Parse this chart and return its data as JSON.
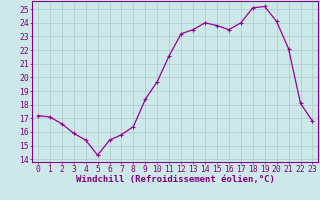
{
  "x": [
    0,
    1,
    2,
    3,
    4,
    5,
    6,
    7,
    8,
    9,
    10,
    11,
    12,
    13,
    14,
    15,
    16,
    17,
    18,
    19,
    20,
    21,
    22,
    23
  ],
  "y": [
    17.2,
    17.1,
    16.6,
    15.9,
    15.4,
    14.3,
    15.4,
    15.8,
    16.4,
    18.4,
    19.7,
    21.6,
    23.2,
    23.5,
    24.0,
    23.8,
    23.5,
    24.0,
    25.1,
    25.2,
    24.1,
    22.1,
    18.1,
    16.8
  ],
  "line_color": "#990099",
  "bg_color": "#cce8e8",
  "grid_color": "#aacccc",
  "xlabel": "Windchill (Refroidissement éolien,°C)",
  "ylim": [
    13.8,
    25.6
  ],
  "xlim": [
    -0.5,
    23.5
  ],
  "yticks": [
    14,
    15,
    16,
    17,
    18,
    19,
    20,
    21,
    22,
    23,
    24,
    25
  ],
  "xticks": [
    0,
    1,
    2,
    3,
    4,
    5,
    6,
    7,
    8,
    9,
    10,
    11,
    12,
    13,
    14,
    15,
    16,
    17,
    18,
    19,
    20,
    21,
    22,
    23
  ],
  "tick_color": "#800080",
  "tick_fontsize": 5.8,
  "xlabel_fontsize": 6.5,
  "marker_size": 2.2
}
